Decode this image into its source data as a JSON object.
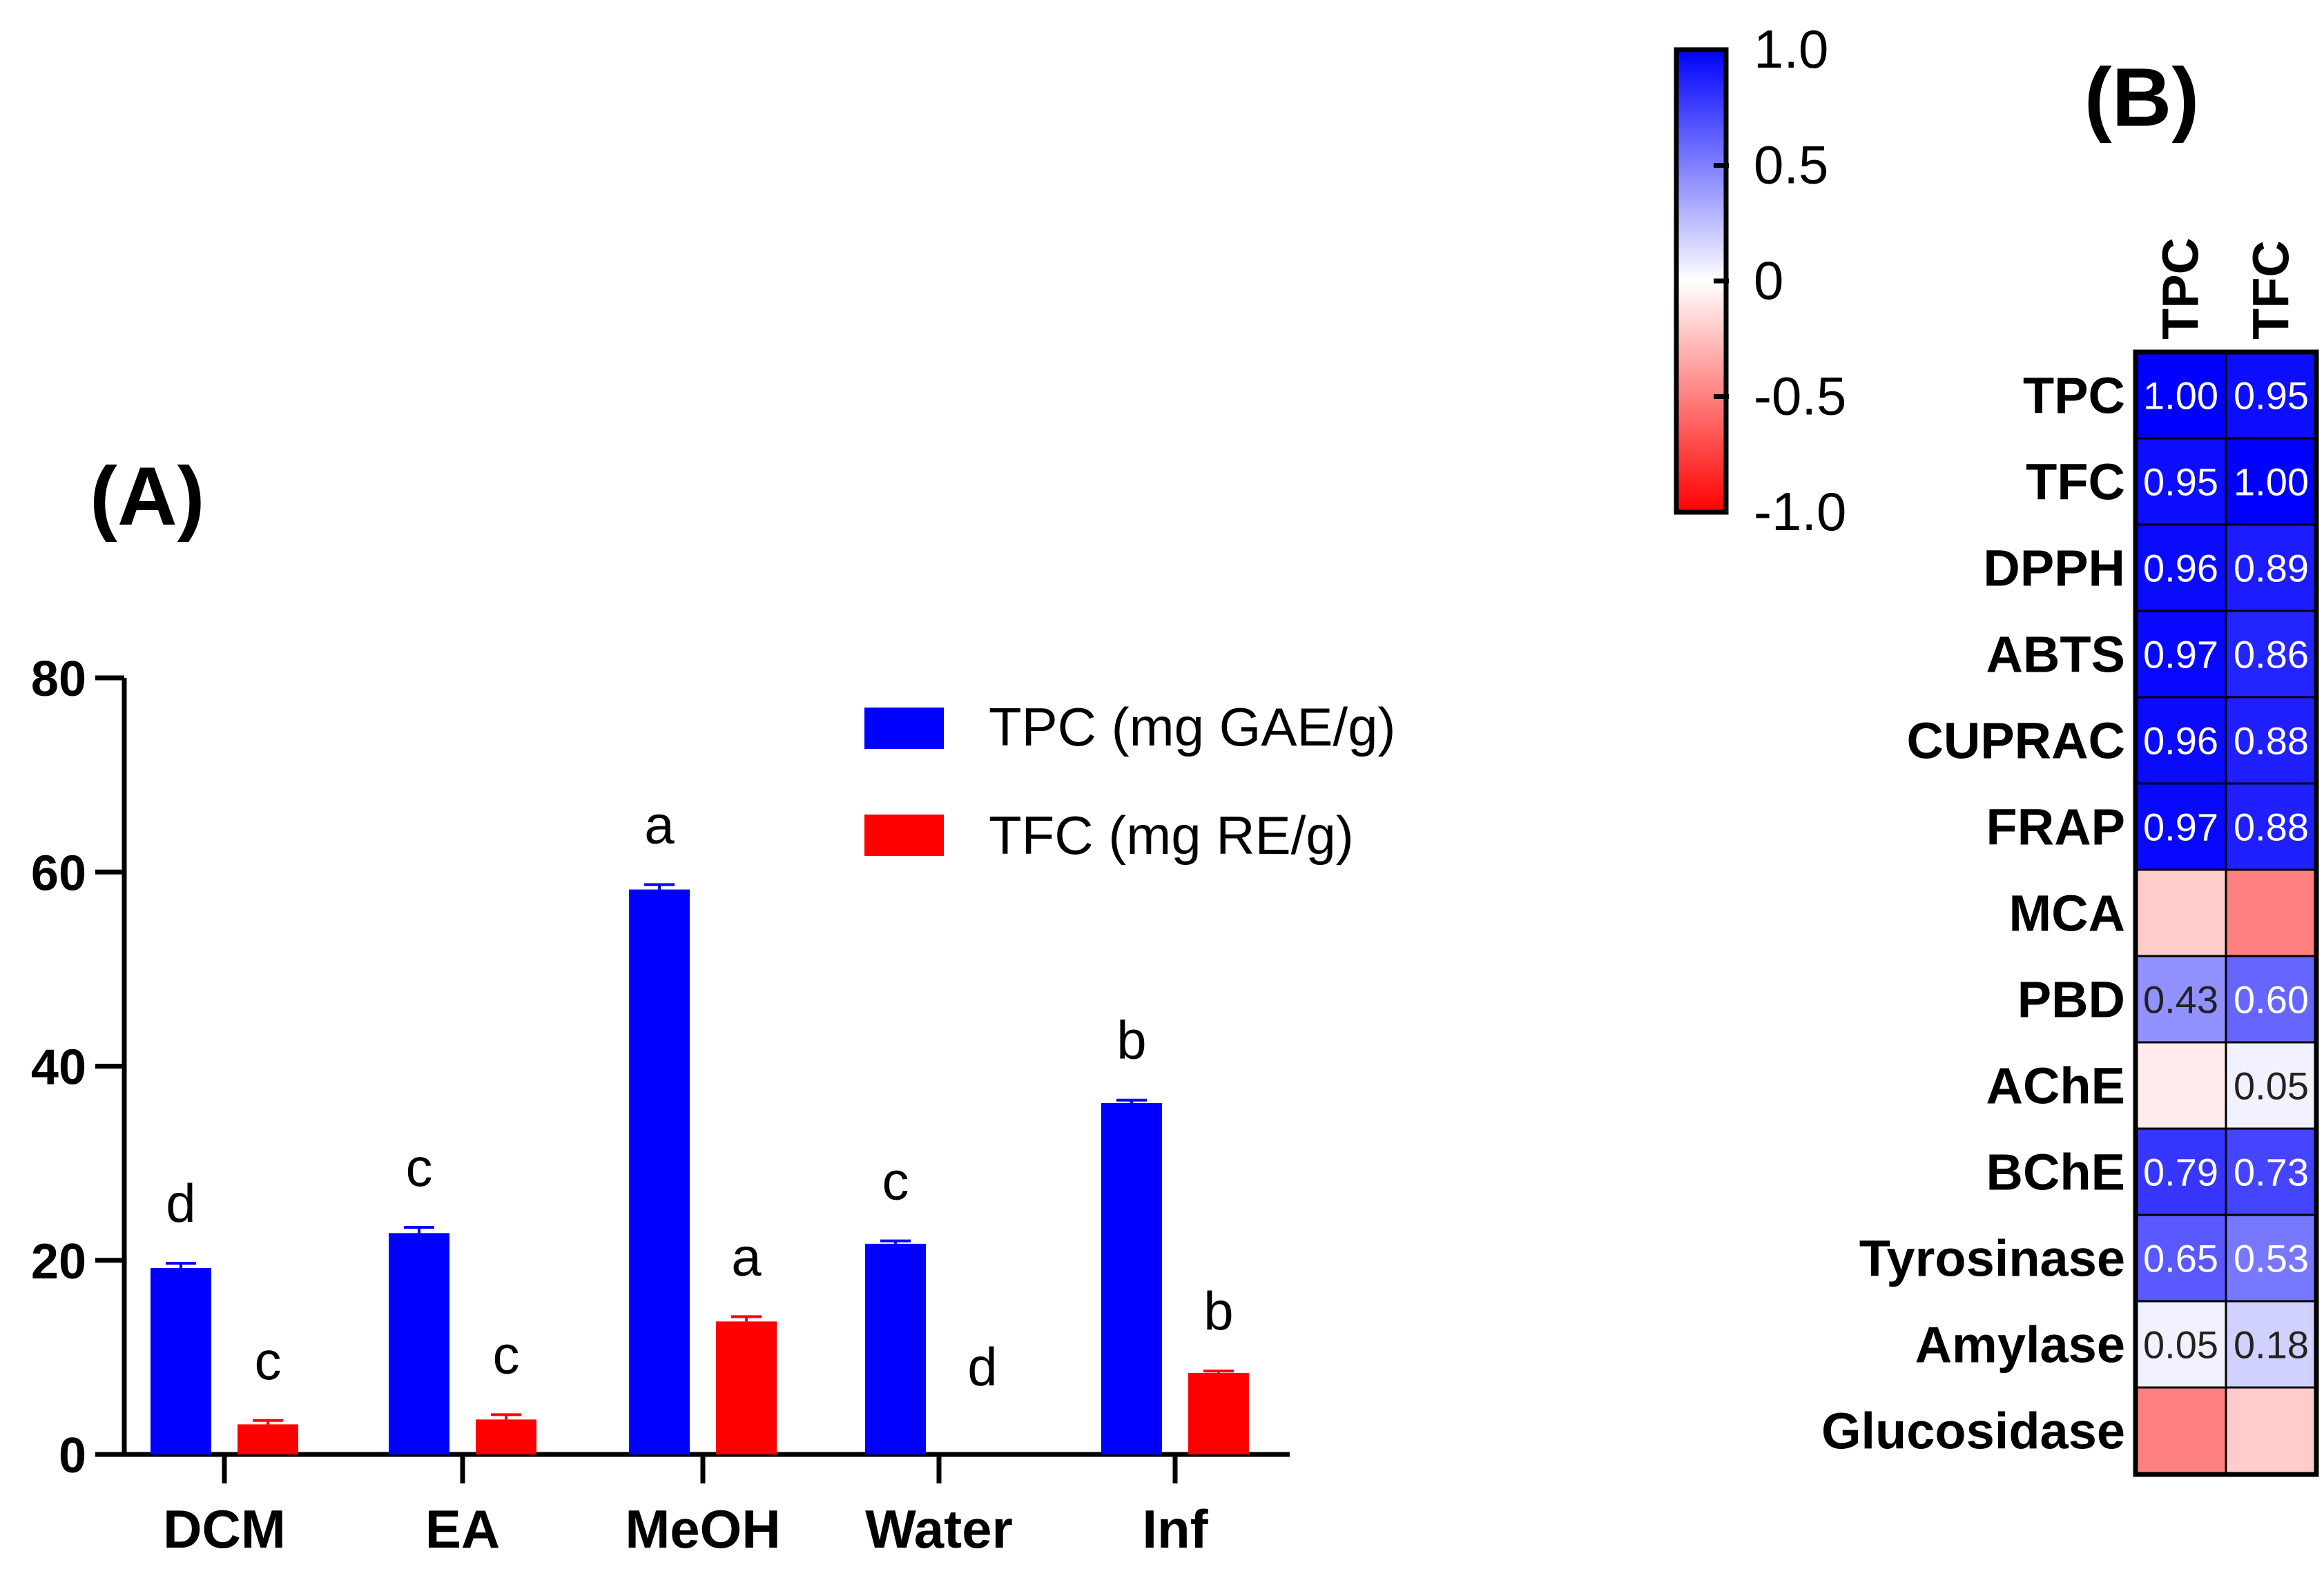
{
  "chart_data": [
    {
      "type": "bar",
      "panel_label": "(A)",
      "title": "",
      "xlabel": "",
      "ylabel": "",
      "ylim": [
        0,
        80
      ],
      "yticks": [
        "0",
        "20",
        "40",
        "60",
        "80"
      ],
      "categories": [
        "DCM",
        "EA",
        "MeOH",
        "Water",
        "Inf"
      ],
      "series": [
        {
          "name": "TPC (mg GAE/g)",
          "color": "#0000ff",
          "values": [
            19.2,
            22.8,
            58.2,
            21.7,
            36.2
          ],
          "errors": [
            0.5,
            0.6,
            0.5,
            0.3,
            0.3
          ],
          "letters": [
            "d",
            "c",
            "a",
            "c",
            "b"
          ]
        },
        {
          "name": "TFC (mg RE/g)",
          "color": "#ff0000",
          "values": [
            3.1,
            3.6,
            13.7,
            0,
            8.4
          ],
          "errors": [
            0.4,
            0.5,
            0.5,
            0,
            0.2
          ],
          "letters": [
            "c",
            "c",
            "a",
            "d",
            "b"
          ]
        }
      ],
      "legend": "top-right",
      "grid": false
    },
    {
      "type": "heatmap",
      "panel_label": "(B)",
      "title": "",
      "columns": [
        "TPC",
        "TFC"
      ],
      "rows": [
        "TPC",
        "TFC",
        "DPPH",
        "ABTS",
        "CUPRAC",
        "FRAP",
        "MCA",
        "PBD",
        "AChE",
        "BChE",
        "Tyrosinase",
        "Amylase",
        "Glucosidase"
      ],
      "values": [
        [
          1.0,
          0.95
        ],
        [
          0.95,
          1.0
        ],
        [
          0.96,
          0.89
        ],
        [
          0.97,
          0.86
        ],
        [
          0.96,
          0.88
        ],
        [
          0.97,
          0.88
        ],
        [
          -0.2,
          -0.5
        ],
        [
          0.43,
          0.6
        ],
        [
          -0.08,
          0.05
        ],
        [
          0.79,
          0.73
        ],
        [
          0.65,
          0.53
        ],
        [
          0.05,
          0.18
        ],
        [
          -0.5,
          -0.2
        ]
      ],
      "labels": [
        [
          "1.00",
          "0.95"
        ],
        [
          "0.95",
          "1.00"
        ],
        [
          "0.96",
          "0.89"
        ],
        [
          "0.97",
          "0.86"
        ],
        [
          "0.96",
          "0.88"
        ],
        [
          "0.97",
          "0.88"
        ],
        [
          "",
          ""
        ],
        [
          "0.43",
          "0.60"
        ],
        [
          "",
          "0.05"
        ],
        [
          "0.79",
          "0.73"
        ],
        [
          "0.65",
          "0.53"
        ],
        [
          "0.05",
          "0.18"
        ],
        [
          "",
          ""
        ]
      ],
      "colorbar": {
        "range": [
          -1.0,
          1.0
        ],
        "ticks": [
          "1.0",
          "0.5",
          "0",
          "-0.5",
          "-1.0"
        ],
        "colors": {
          "positive": "#0000ff",
          "zero": "#ffffff",
          "negative": "#ff0000"
        },
        "placement": "top-left"
      }
    }
  ]
}
